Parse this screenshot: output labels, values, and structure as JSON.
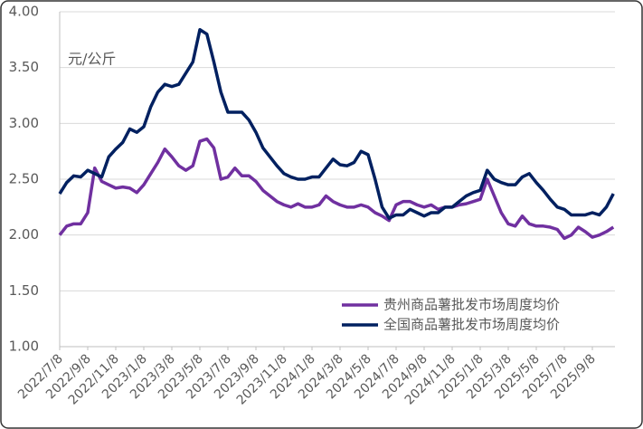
{
  "chart_data": {
    "type": "line",
    "annotation": "元/公斤",
    "categories": [
      "2022/7/8",
      null,
      null,
      null,
      "2022/9/8",
      null,
      null,
      null,
      "2022/11/8",
      null,
      null,
      null,
      "2023/1/8",
      null,
      null,
      null,
      "2023/3/8",
      null,
      null,
      null,
      "2023/5/8",
      null,
      null,
      null,
      "2023/7/8",
      null,
      null,
      null,
      "2023/9/8",
      null,
      null,
      null,
      "2023/11/8",
      null,
      null,
      null,
      "2024/1/8",
      null,
      null,
      null,
      "2024/3/8",
      null,
      null,
      null,
      "2024/5/8",
      null,
      null,
      null,
      "2024/7/8",
      null,
      null,
      null,
      "2024/9/8",
      null,
      null,
      null,
      "2024/11/8",
      null,
      null,
      null,
      "2025/1/8",
      null,
      null,
      null,
      "2025/3/8",
      null,
      null,
      null,
      "2025/5/8",
      null,
      null,
      null,
      "2025/7/8",
      null,
      null,
      null,
      "2025/9/8",
      null,
      null,
      null
    ],
    "series": [
      {
        "name": "贵州商品薯批发市场周度均价",
        "color": "#7030a0",
        "values": [
          2.0,
          2.08,
          2.1,
          2.1,
          2.2,
          2.6,
          2.48,
          2.45,
          2.42,
          2.43,
          2.42,
          2.38,
          2.45,
          2.55,
          2.65,
          2.77,
          2.7,
          2.62,
          2.58,
          2.62,
          2.84,
          2.86,
          2.78,
          2.5,
          2.52,
          2.6,
          2.53,
          2.53,
          2.48,
          2.4,
          2.35,
          2.3,
          2.27,
          2.25,
          2.28,
          2.25,
          2.25,
          2.27,
          2.35,
          2.3,
          2.27,
          2.25,
          2.25,
          2.27,
          2.25,
          2.2,
          2.17,
          2.13,
          2.27,
          2.3,
          2.3,
          2.27,
          2.25,
          2.27,
          2.23,
          2.25,
          2.25,
          2.27,
          2.28,
          2.3,
          2.32,
          2.5,
          2.35,
          2.2,
          2.1,
          2.08,
          2.17,
          2.1,
          2.08,
          2.08,
          2.07,
          2.05,
          1.97,
          2.0,
          2.07,
          2.03,
          1.98,
          2.0,
          2.03,
          2.07
        ]
      },
      {
        "name": "全国商品薯批发市场周度均价",
        "color": "#002060",
        "values": [
          2.37,
          2.47,
          2.53,
          2.52,
          2.58,
          2.55,
          2.52,
          2.7,
          2.77,
          2.83,
          2.95,
          2.92,
          2.97,
          3.15,
          3.28,
          3.35,
          3.33,
          3.35,
          3.45,
          3.55,
          3.84,
          3.8,
          3.55,
          3.28,
          3.1,
          3.1,
          3.1,
          3.03,
          2.92,
          2.78,
          2.7,
          2.62,
          2.55,
          2.52,
          2.5,
          2.5,
          2.52,
          2.52,
          2.6,
          2.68,
          2.63,
          2.62,
          2.65,
          2.75,
          2.72,
          2.5,
          2.25,
          2.15,
          2.18,
          2.18,
          2.23,
          2.2,
          2.17,
          2.2,
          2.2,
          2.25,
          2.25,
          2.3,
          2.35,
          2.38,
          2.4,
          2.58,
          2.5,
          2.47,
          2.45,
          2.45,
          2.52,
          2.55,
          2.47,
          2.4,
          2.32,
          2.25,
          2.23,
          2.18,
          2.18,
          2.18,
          2.2,
          2.18,
          2.25,
          2.37
        ]
      }
    ],
    "ylim": [
      1,
      4
    ],
    "yticks": [
      {
        "value": 1,
        "label": "1.00"
      },
      {
        "value": 1.5,
        "label": "1.50"
      },
      {
        "value": 2,
        "label": "2.00"
      },
      {
        "value": 2.5,
        "label": "2.50"
      },
      {
        "value": 3,
        "label": "3.00"
      },
      {
        "value": 3.5,
        "label": "3.50"
      },
      {
        "value": 4,
        "label": "4.00"
      }
    ],
    "grid": true
  }
}
